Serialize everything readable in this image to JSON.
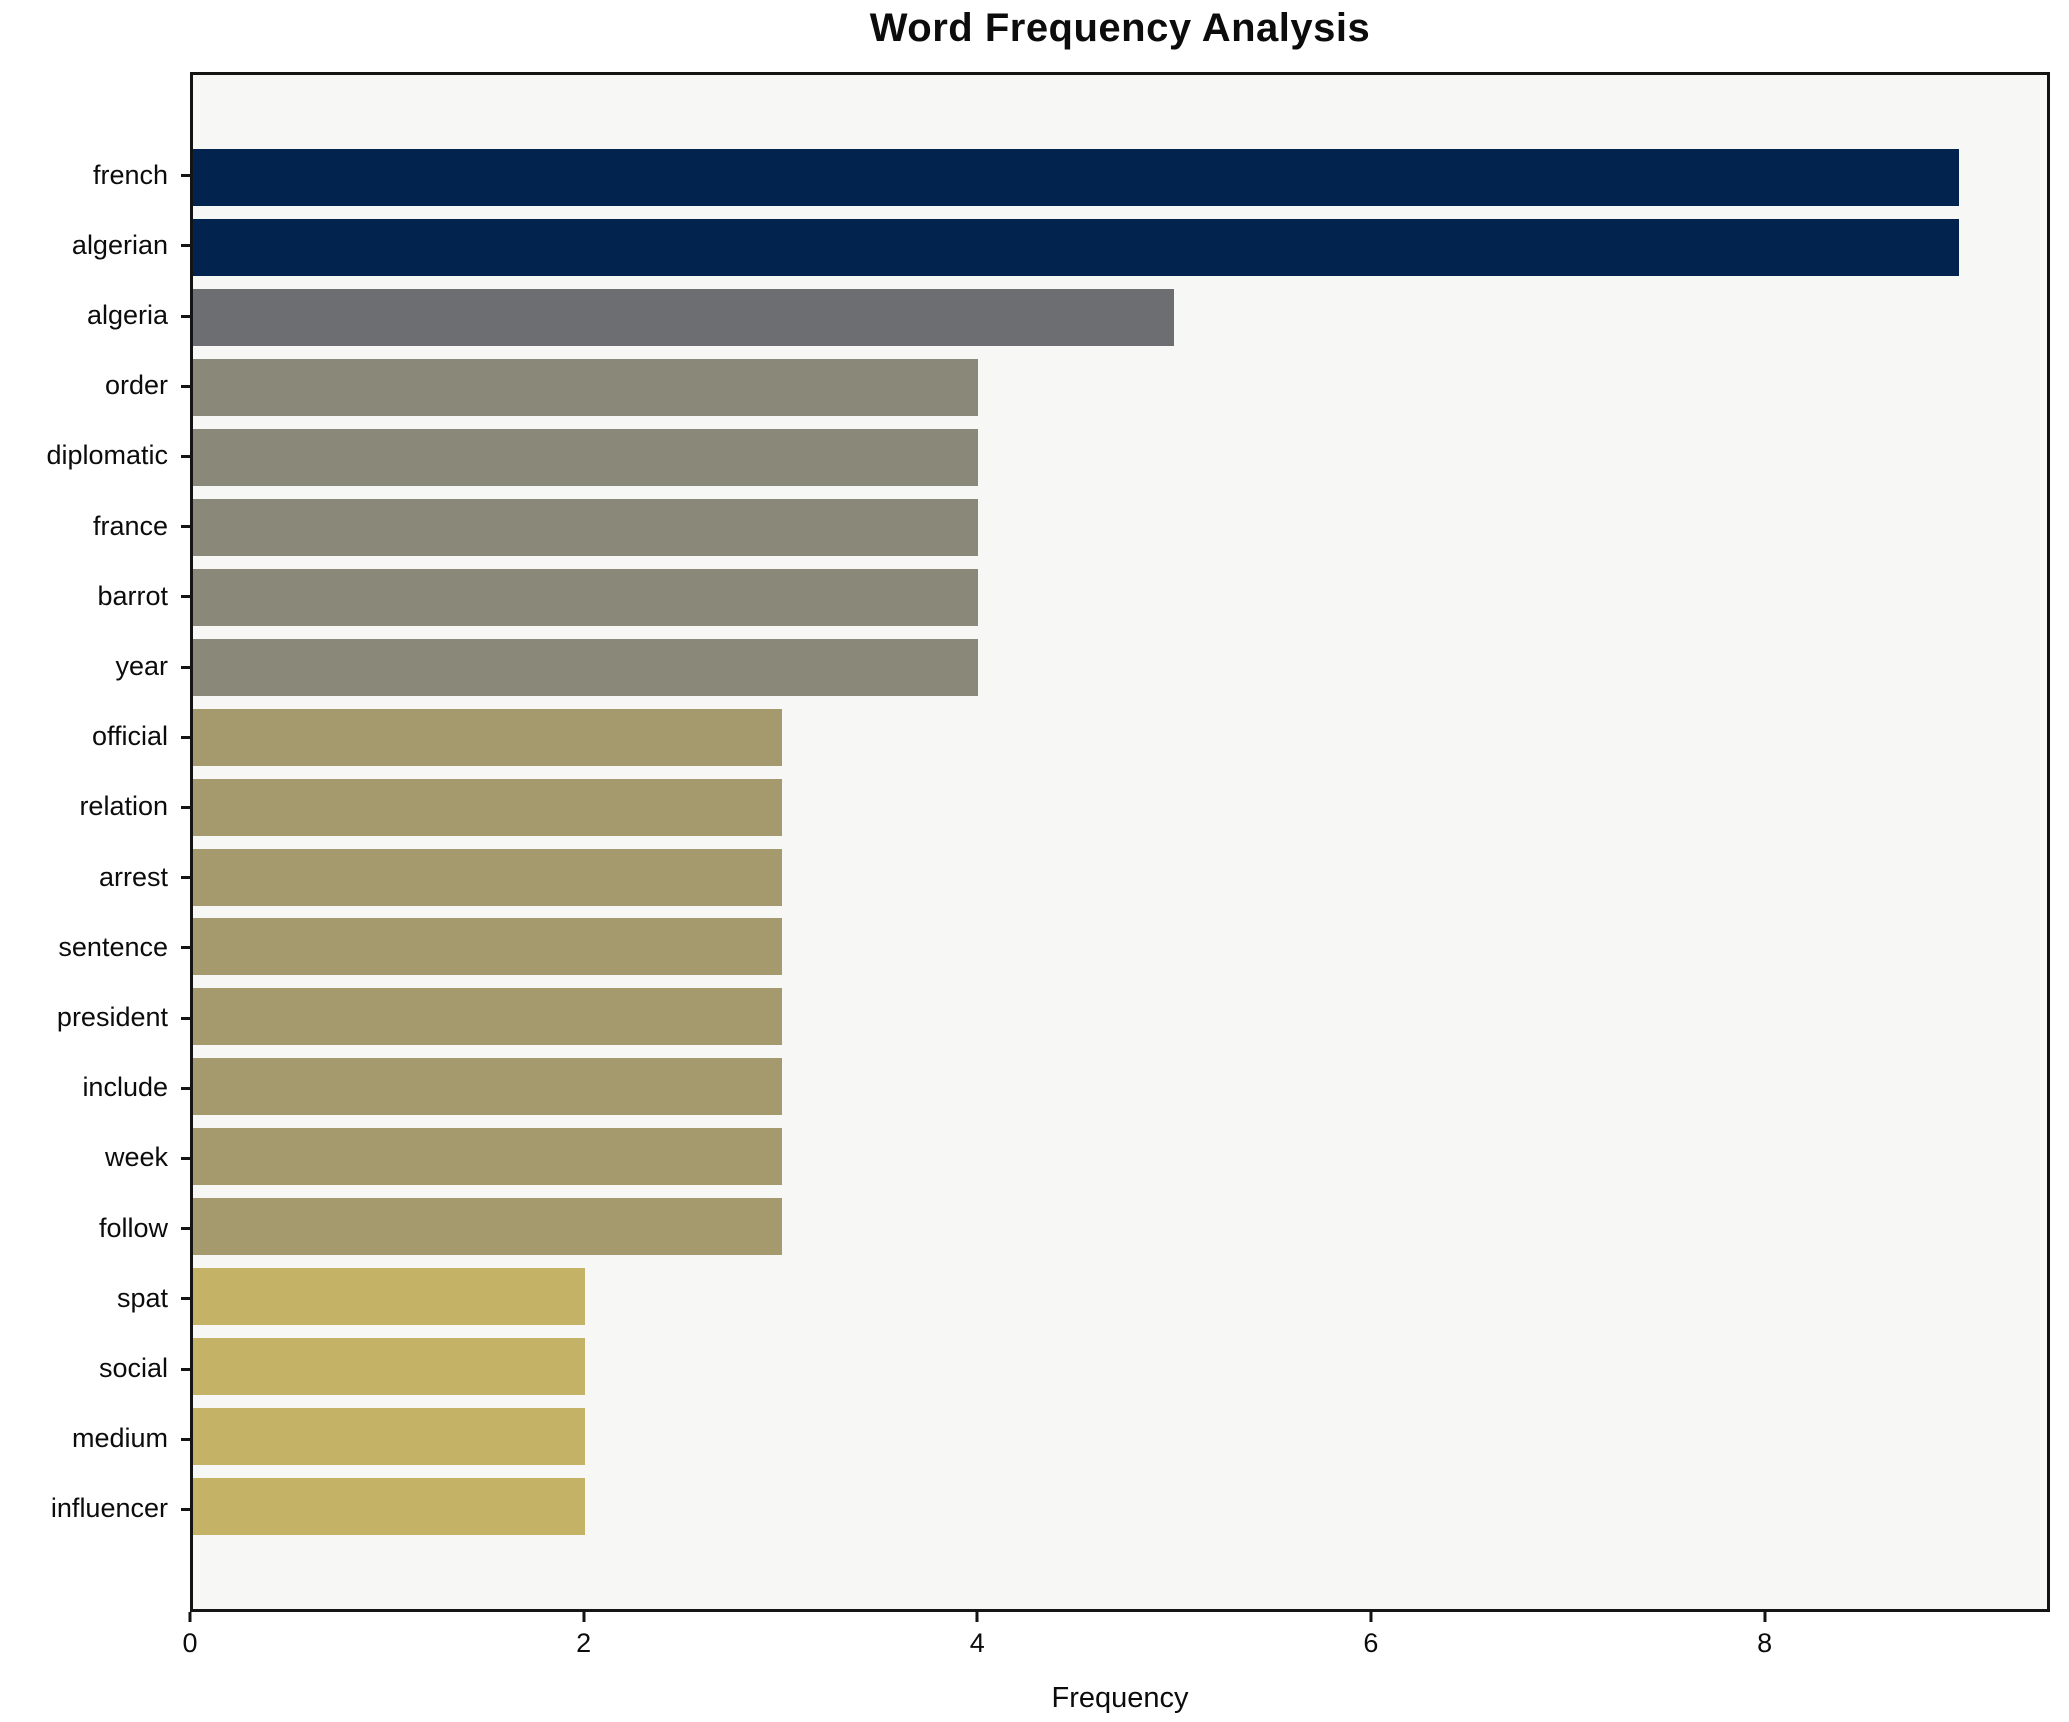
{
  "chart_data": {
    "type": "bar",
    "orientation": "horizontal",
    "title": "Word Frequency Analysis",
    "xlabel": "Frequency",
    "ylabel": "",
    "grid": false,
    "legend": "none",
    "plot_background": "#f7f7f6",
    "figure_background": "#ffffff",
    "spine_color": "#141414",
    "xlim": [
      0,
      9.45
    ],
    "xticks": [
      0,
      2,
      4,
      6,
      8
    ],
    "categories": [
      "french",
      "algerian",
      "algeria",
      "order",
      "diplomatic",
      "france",
      "barrot",
      "year",
      "official",
      "relation",
      "arrest",
      "sentence",
      "president",
      "include",
      "week",
      "follow",
      "spat",
      "social",
      "medium",
      "influencer"
    ],
    "values": [
      9,
      9,
      5,
      4,
      4,
      4,
      4,
      4,
      3,
      3,
      3,
      3,
      3,
      3,
      3,
      3,
      2,
      2,
      2,
      2
    ],
    "bar_colors": [
      "#01234e",
      "#01234e",
      "#6c6e71",
      "#8a8878",
      "#8a8878",
      "#8a8878",
      "#8a8878",
      "#8a8878",
      "#a49a6e",
      "#a49a6e",
      "#a49a6e",
      "#a49a6e",
      "#a49a6e",
      "#a49a6e",
      "#a49a6e",
      "#a49a6e",
      "#c4b267",
      "#c4b267",
      "#c4b267",
      "#c4b267"
    ]
  }
}
